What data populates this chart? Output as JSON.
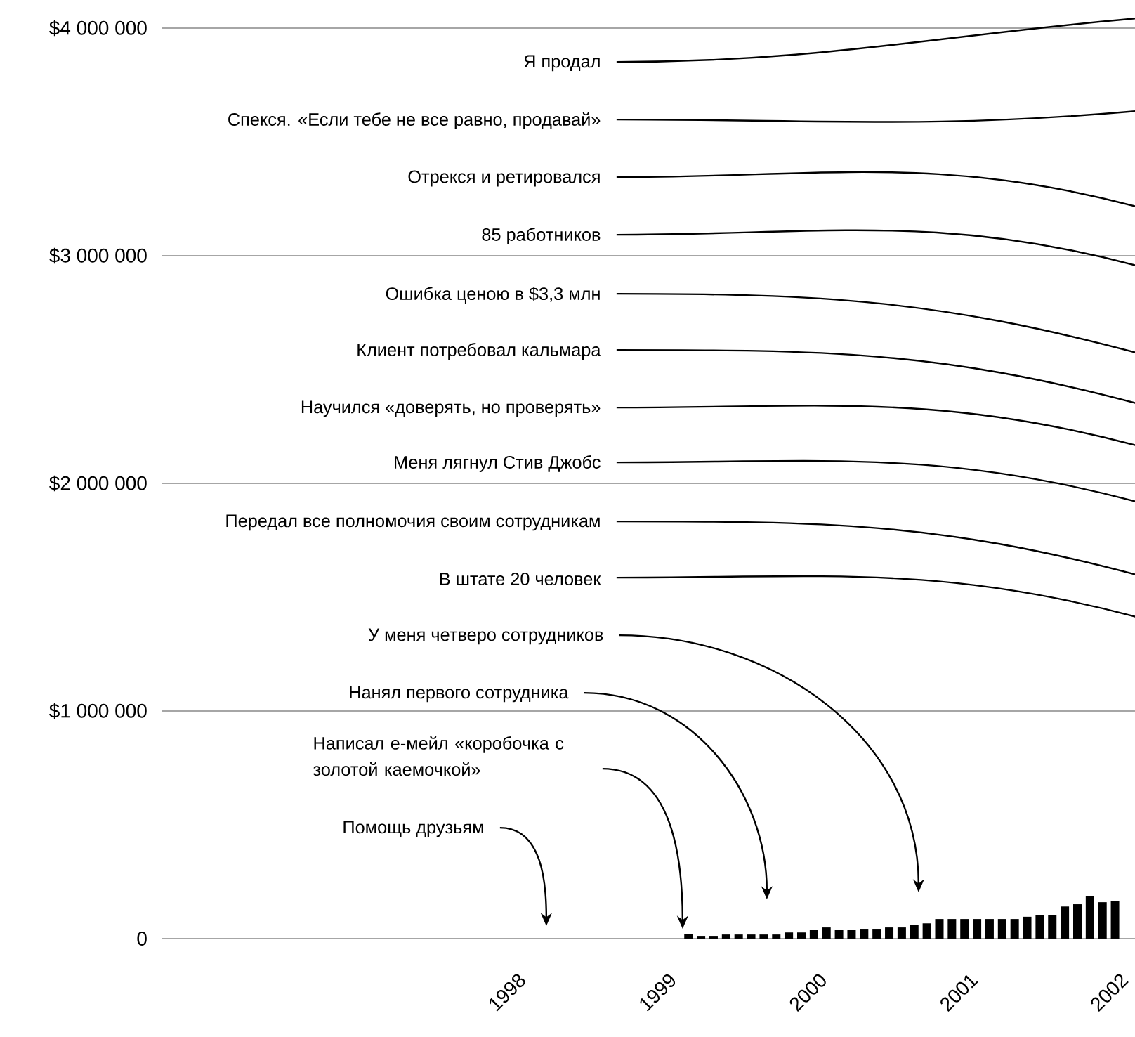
{
  "chart_data": {
    "type": "bar",
    "x": [
      "1999-02",
      "1999-03",
      "1999-04",
      "1999-05",
      "1999-06",
      "1999-07",
      "1999-08",
      "1999-09",
      "1999-10",
      "1999-11",
      "1999-12",
      "2000-01",
      "2000-02",
      "2000-03",
      "2000-04",
      "2000-05",
      "2000-06",
      "2000-07",
      "2000-08",
      "2000-09",
      "2000-10",
      "2000-11",
      "2000-12",
      "2001-01",
      "2001-02",
      "2001-03",
      "2001-04",
      "2001-05",
      "2001-06",
      "2001-07",
      "2001-08",
      "2001-09",
      "2001-10",
      "2001-11",
      "2001-12"
    ],
    "values": [
      20000,
      12000,
      12000,
      18000,
      18000,
      18000,
      18000,
      18000,
      27000,
      27000,
      37000,
      49000,
      37000,
      37000,
      43000,
      43000,
      49000,
      49000,
      61000,
      67000,
      86000,
      86000,
      86000,
      86000,
      86000,
      86000,
      86000,
      96000,
      104000,
      104000,
      141000,
      151000,
      188000,
      160000,
      164000
    ],
    "color": "#000000",
    "xlim": [
      "1995-08",
      "2002-01-19"
    ],
    "xticks": [
      "1998",
      "1999",
      "2000",
      "2001",
      "2002"
    ],
    "ylim": [
      0,
      4000000
    ],
    "yticks": [
      0,
      {
        "value": 1000000,
        "label": "$1 000 000"
      },
      {
        "value": 2000000,
        "label": "$2 000 000"
      },
      {
        "value": 3000000,
        "label": "$3 000 000"
      },
      {
        "value": 4000000,
        "label": "$4 000 000"
      }
    ],
    "grid": "y",
    "annotations": [
      "Я продал",
      "Спекся. «Если тебе не все равно, продавай»",
      "Отрекся и ретировался",
      "85 работников",
      "Ошибка ценою в $3,3 млн",
      "Клиент потребовал кальмара",
      "Научился «доверять, но проверять»",
      "Меня лягнул Стив Джобс",
      "Передал все полномочия своим сотрудникам",
      "В штате 20 человек",
      "У меня четверо сотрудников",
      "Нанял первого сотрудника",
      "Написал е-мейл «коробочка с золотой каемочкой»",
      "Помощь друзьям"
    ]
  }
}
